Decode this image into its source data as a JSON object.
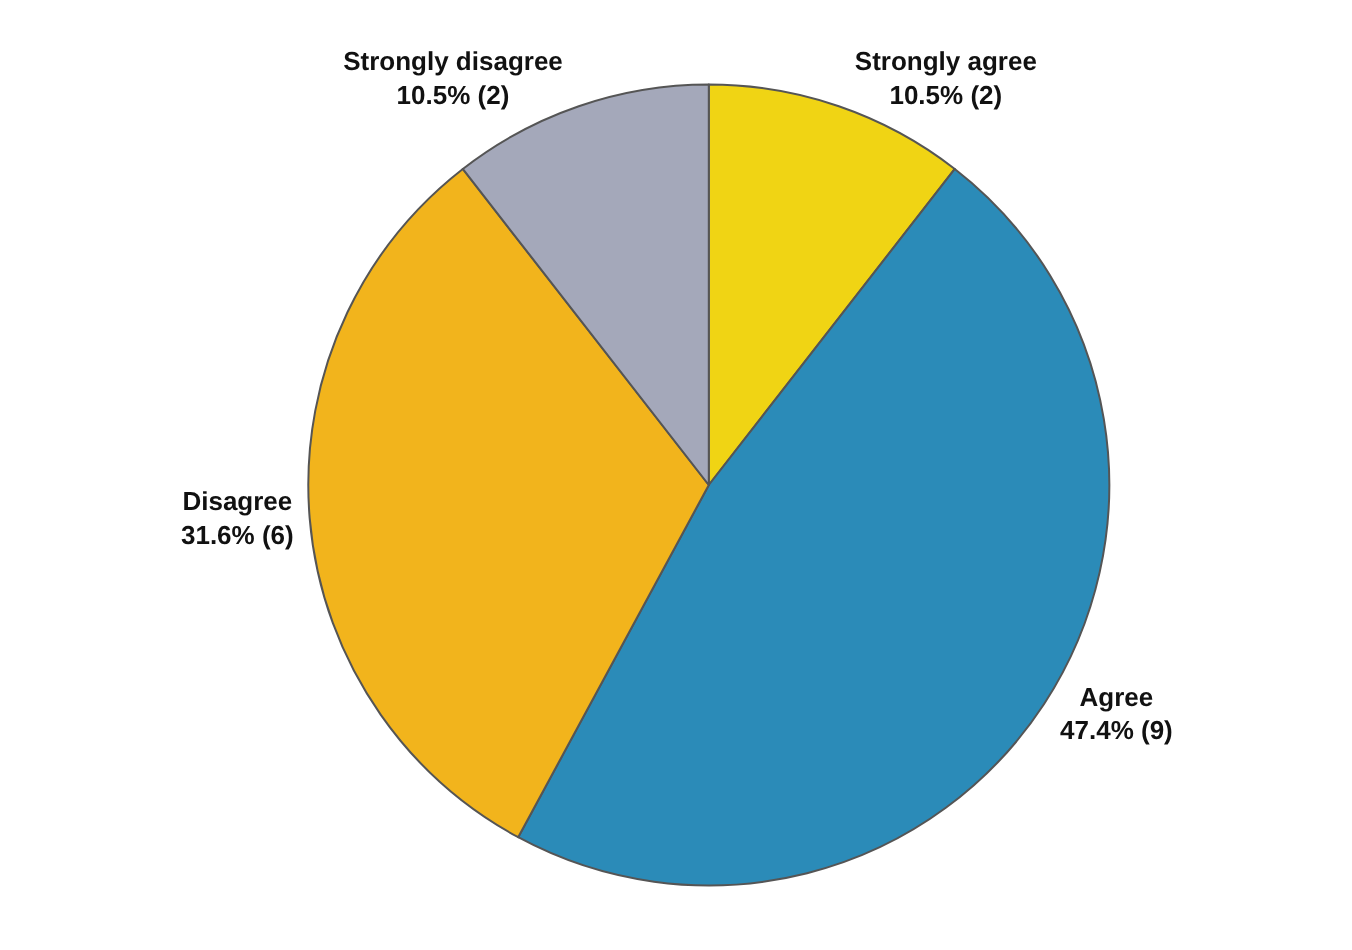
{
  "chart_data": {
    "type": "pie",
    "categories": [
      "Strongly agree",
      "Agree",
      "Disagree",
      "Strongly disagree"
    ],
    "values": [
      2,
      9,
      6,
      2
    ],
    "value_labels": [
      "10.5% (2)",
      "47.4% (9)",
      "31.6% (6)",
      "10.5% (2)"
    ],
    "colors": [
      "#f0d414",
      "#2b8bb8",
      "#f2b41c",
      "#a4a8ba"
    ],
    "legend": false
  }
}
